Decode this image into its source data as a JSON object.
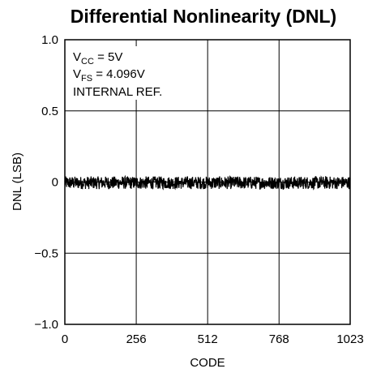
{
  "chart_data": {
    "type": "line",
    "title": "Differential Nonlinearity (DNL)",
    "xlabel": "CODE",
    "ylabel": "DNL (LSB)",
    "xlim": [
      0,
      1023
    ],
    "ylim": [
      -1.0,
      1.0
    ],
    "x_ticks": [
      0,
      256,
      512,
      768,
      1023
    ],
    "x_tick_labels": [
      "0",
      "256",
      "512",
      "768",
      "1023"
    ],
    "y_ticks": [
      1.0,
      0.5,
      0,
      -0.5,
      -1.0
    ],
    "y_tick_labels": [
      "1.0",
      "0.5",
      "0",
      "−0.5",
      "−1.0"
    ],
    "grid": true,
    "annotations": {
      "line1": {
        "main": "V",
        "sub": "CC",
        "rest": " = 5V"
      },
      "line2": {
        "main": "V",
        "sub": "FS",
        "rest": " = 4.096V"
      },
      "line3": "INTERNAL REF."
    },
    "series": [
      {
        "band_min": -0.05,
        "band_max": 0.04,
        "points": 1024
      }
    ],
    "colors": {
      "line": "#000000",
      "grid": "#000000",
      "background": "#ffffff"
    }
  }
}
